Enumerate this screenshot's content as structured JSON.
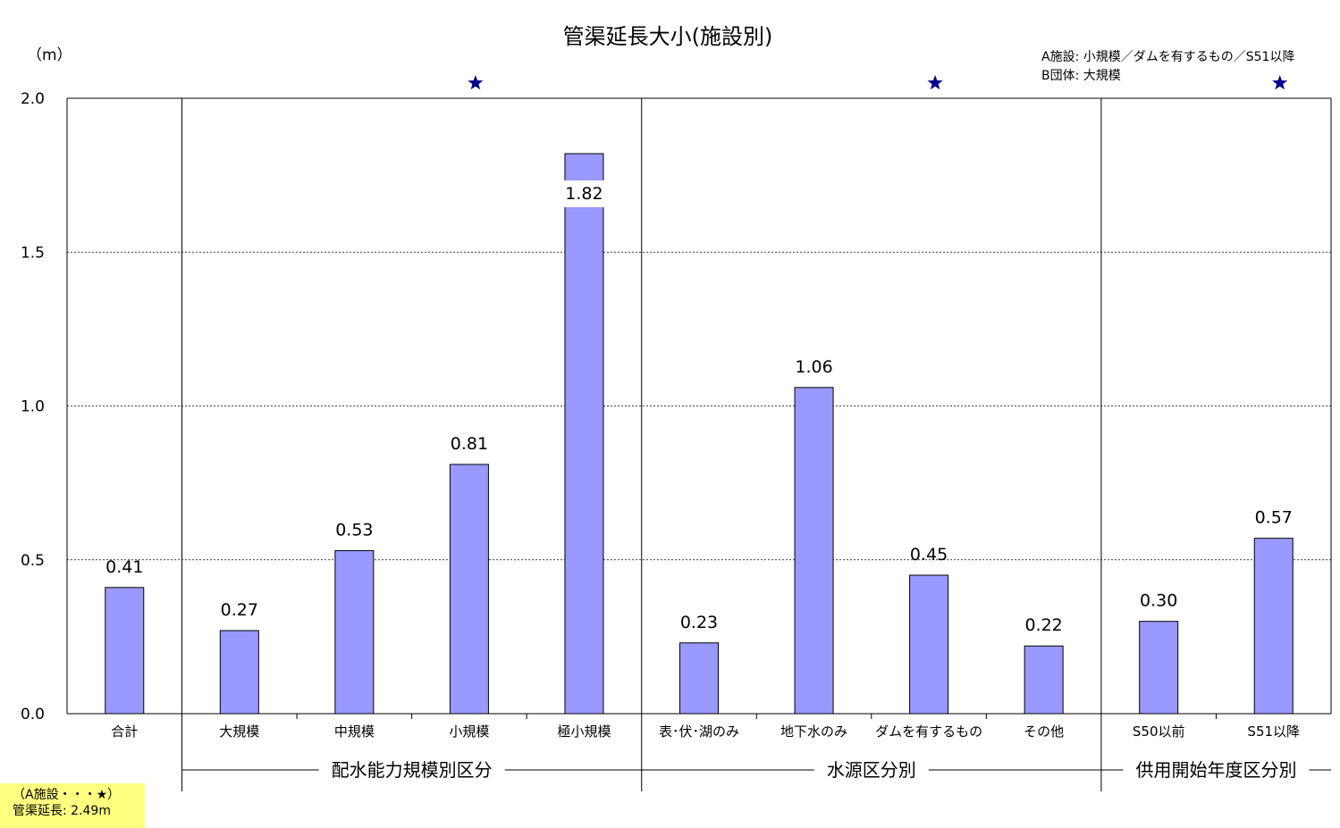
{
  "title": "管渠延長大小(施設別)",
  "unit_label": "（m）",
  "legend_lines": [
    "A施設: 小規模／ダムを有するもの／S51以降",
    "B団体: 大規模"
  ],
  "star_color": "#00008b",
  "bar_color": "#9999ff",
  "note": {
    "line1": "（A施設・・・★）",
    "line2": "管渠延長: 2.49m",
    "background": "#ffff80"
  },
  "chart_data": {
    "type": "bar",
    "ylim": [
      0,
      2.0
    ],
    "yticks": [
      "0.0",
      "0.5",
      "1.0",
      "1.5",
      "2.0"
    ],
    "ytick_values": [
      0,
      0.5,
      1.0,
      1.5,
      2.0
    ],
    "categories": [
      "合計",
      "大規模",
      "中規模",
      "小規模",
      "極小規模",
      "表･伏･湖のみ",
      "地下水のみ",
      "ダムを有するもの",
      "その他",
      "S50以前",
      "S51以降"
    ],
    "values": [
      0.41,
      0.27,
      0.53,
      0.81,
      1.82,
      0.23,
      1.06,
      0.45,
      0.22,
      0.3,
      0.57
    ],
    "value_labels": [
      "0.41",
      "0.27",
      "0.53",
      "0.81",
      "1.82",
      "0.23",
      "1.06",
      "0.45",
      "0.22",
      "0.30",
      "0.57"
    ],
    "starred": [
      false,
      false,
      false,
      true,
      false,
      false,
      false,
      true,
      false,
      false,
      true
    ],
    "groups": [
      {
        "label": "配水能力規模別区分",
        "from": 1,
        "to": 4
      },
      {
        "label": "水源区分別",
        "from": 5,
        "to": 8
      },
      {
        "label": "供用開始年度区分別",
        "from": 9,
        "to": 10
      }
    ],
    "grid": true
  }
}
